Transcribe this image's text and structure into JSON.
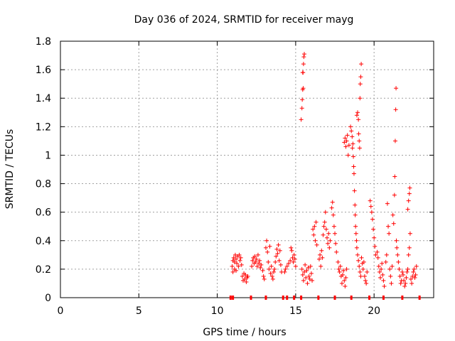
{
  "chart_data": {
    "type": "scatter",
    "title": "Day 036 of 2024, SRMTID for receiver mayg",
    "xlabel": "GPS time / hours",
    "ylabel": "SRMTID / TECUs",
    "xlim": [
      0,
      23.8
    ],
    "ylim": [
      0,
      1.8
    ],
    "xticks": [
      0,
      5,
      10,
      15,
      20
    ],
    "xtick_labels": [
      "0",
      "5",
      "10",
      "15",
      "20"
    ],
    "yticks": [
      0,
      0.2,
      0.4,
      0.6,
      0.8,
      1.0,
      1.2,
      1.4,
      1.6,
      1.8
    ],
    "ytick_labels": [
      "0",
      "0.2",
      "0.4",
      "0.6",
      "0.8",
      "1",
      "1.2",
      "1.4",
      "1.6",
      "1.8"
    ],
    "grid": true,
    "marker": "+",
    "color": "#ff0000",
    "series": [
      {
        "name": "SRMTID",
        "points": [
          [
            10.95,
            0.22
          ],
          [
            11.0,
            0.26
          ],
          [
            11.05,
            0.28
          ],
          [
            11.1,
            0.25
          ],
          [
            11.15,
            0.3
          ],
          [
            11.2,
            0.27
          ],
          [
            11.25,
            0.24
          ],
          [
            11.3,
            0.29
          ],
          [
            11.35,
            0.22
          ],
          [
            11.4,
            0.3
          ],
          [
            11.45,
            0.26
          ],
          [
            11.5,
            0.28
          ],
          [
            11.55,
            0.23
          ],
          [
            11.0,
            0.18
          ],
          [
            11.1,
            0.2
          ],
          [
            11.2,
            0.19
          ],
          [
            11.6,
            0.15
          ],
          [
            11.65,
            0.12
          ],
          [
            11.7,
            0.17
          ],
          [
            11.75,
            0.13
          ],
          [
            11.8,
            0.16
          ],
          [
            11.85,
            0.11
          ],
          [
            11.9,
            0.14
          ],
          [
            11.95,
            0.15
          ],
          [
            12.2,
            0.22
          ],
          [
            12.25,
            0.26
          ],
          [
            12.3,
            0.28
          ],
          [
            12.35,
            0.24
          ],
          [
            12.4,
            0.29
          ],
          [
            12.45,
            0.25
          ],
          [
            12.5,
            0.27
          ],
          [
            12.55,
            0.22
          ],
          [
            12.6,
            0.3
          ],
          [
            12.65,
            0.24
          ],
          [
            12.7,
            0.26
          ],
          [
            12.75,
            0.21
          ],
          [
            12.8,
            0.23
          ],
          [
            12.9,
            0.19
          ],
          [
            12.95,
            0.15
          ],
          [
            13.0,
            0.13
          ],
          [
            13.1,
            0.35
          ],
          [
            13.15,
            0.4
          ],
          [
            13.2,
            0.32
          ],
          [
            13.25,
            0.25
          ],
          [
            13.3,
            0.2
          ],
          [
            13.35,
            0.36
          ],
          [
            13.4,
            0.17
          ],
          [
            13.45,
            0.22
          ],
          [
            13.5,
            0.15
          ],
          [
            13.55,
            0.13
          ],
          [
            13.6,
            0.18
          ],
          [
            13.65,
            0.2
          ],
          [
            13.7,
            0.25
          ],
          [
            13.75,
            0.29
          ],
          [
            13.8,
            0.34
          ],
          [
            13.85,
            0.31
          ],
          [
            13.9,
            0.37
          ],
          [
            13.95,
            0.26
          ],
          [
            14.0,
            0.33
          ],
          [
            14.05,
            0.23
          ],
          [
            14.1,
            0.18
          ],
          [
            14.3,
            0.18
          ],
          [
            14.35,
            0.2
          ],
          [
            14.45,
            0.22
          ],
          [
            14.55,
            0.24
          ],
          [
            14.65,
            0.26
          ],
          [
            14.7,
            0.35
          ],
          [
            14.75,
            0.33
          ],
          [
            14.8,
            0.28
          ],
          [
            14.85,
            0.25
          ],
          [
            14.9,
            0.3
          ],
          [
            14.95,
            0.27
          ],
          [
            15.0,
            0.22
          ],
          [
            15.35,
            1.25
          ],
          [
            15.4,
            1.33
          ],
          [
            15.42,
            1.39
          ],
          [
            15.45,
            1.46
          ],
          [
            15.47,
            1.58
          ],
          [
            15.5,
            1.64
          ],
          [
            15.52,
            1.69
          ],
          [
            15.55,
            1.71
          ],
          [
            15.48,
            1.47
          ],
          [
            15.45,
            1.58
          ],
          [
            15.4,
            0.2
          ],
          [
            15.45,
            0.16
          ],
          [
            15.5,
            0.12
          ],
          [
            15.55,
            0.18
          ],
          [
            15.6,
            0.23
          ],
          [
            15.65,
            0.14
          ],
          [
            15.7,
            0.19
          ],
          [
            15.75,
            0.1
          ],
          [
            15.8,
            0.21
          ],
          [
            15.85,
            0.15
          ],
          [
            15.9,
            0.13
          ],
          [
            15.95,
            0.22
          ],
          [
            16.0,
            0.17
          ],
          [
            16.05,
            0.12
          ],
          [
            16.1,
            0.48
          ],
          [
            16.15,
            0.44
          ],
          [
            16.2,
            0.5
          ],
          [
            16.25,
            0.4
          ],
          [
            16.3,
            0.53
          ],
          [
            16.35,
            0.37
          ],
          [
            16.5,
            0.27
          ],
          [
            16.55,
            0.3
          ],
          [
            16.6,
            0.22
          ],
          [
            16.65,
            0.33
          ],
          [
            16.7,
            0.28
          ],
          [
            16.75,
            0.44
          ],
          [
            16.8,
            0.5
          ],
          [
            16.85,
            0.53
          ],
          [
            16.9,
            0.6
          ],
          [
            16.95,
            0.48
          ],
          [
            17.0,
            0.42
          ],
          [
            17.05,
            0.38
          ],
          [
            17.1,
            0.45
          ],
          [
            17.15,
            0.35
          ],
          [
            17.2,
            0.4
          ],
          [
            17.3,
            0.63
          ],
          [
            17.35,
            0.67
          ],
          [
            17.4,
            0.58
          ],
          [
            17.45,
            0.5
          ],
          [
            17.5,
            0.45
          ],
          [
            17.55,
            0.38
          ],
          [
            17.6,
            0.32
          ],
          [
            17.7,
            0.25
          ],
          [
            17.75,
            0.2
          ],
          [
            17.8,
            0.18
          ],
          [
            17.85,
            0.22
          ],
          [
            17.9,
            0.15
          ],
          [
            17.95,
            0.1
          ],
          [
            18.0,
            0.16
          ],
          [
            18.05,
            0.19
          ],
          [
            18.1,
            0.12
          ],
          [
            18.15,
            0.08
          ],
          [
            18.2,
            0.14
          ],
          [
            18.25,
            0.2
          ],
          [
            18.1,
            1.09
          ],
          [
            18.15,
            1.12
          ],
          [
            18.2,
            1.06
          ],
          [
            18.25,
            1.1
          ],
          [
            18.3,
            1.14
          ],
          [
            18.35,
            1.0
          ],
          [
            18.4,
            1.07
          ],
          [
            18.5,
            1.2
          ],
          [
            18.55,
            1.17
          ],
          [
            18.6,
            1.13
          ],
          [
            18.62,
            1.05
          ],
          [
            18.65,
            1.08
          ],
          [
            18.68,
            0.99
          ],
          [
            18.7,
            0.92
          ],
          [
            18.72,
            0.87
          ],
          [
            18.75,
            0.75
          ],
          [
            18.78,
            0.65
          ],
          [
            18.8,
            0.58
          ],
          [
            18.82,
            0.5
          ],
          [
            18.85,
            0.45
          ],
          [
            18.88,
            0.4
          ],
          [
            18.9,
            1.28
          ],
          [
            18.95,
            1.3
          ],
          [
            19.0,
            1.25
          ],
          [
            19.02,
            1.15
          ],
          [
            19.05,
            1.1
          ],
          [
            19.08,
            1.05
          ],
          [
            19.1,
            1.4
          ],
          [
            19.12,
            1.5
          ],
          [
            19.15,
            1.55
          ],
          [
            19.18,
            1.64
          ],
          [
            18.9,
            0.35
          ],
          [
            18.95,
            0.3
          ],
          [
            19.0,
            0.26
          ],
          [
            19.05,
            0.22
          ],
          [
            19.1,
            0.18
          ],
          [
            19.15,
            0.15
          ],
          [
            19.2,
            0.28
          ],
          [
            19.25,
            0.24
          ],
          [
            19.3,
            0.2
          ],
          [
            19.35,
            0.25
          ],
          [
            19.4,
            0.15
          ],
          [
            19.45,
            0.12
          ],
          [
            19.5,
            0.1
          ],
          [
            19.55,
            0.18
          ],
          [
            19.75,
            0.68
          ],
          [
            19.8,
            0.64
          ],
          [
            19.85,
            0.6
          ],
          [
            19.9,
            0.55
          ],
          [
            19.95,
            0.48
          ],
          [
            20.0,
            0.42
          ],
          [
            20.05,
            0.36
          ],
          [
            20.1,
            0.3
          ],
          [
            20.2,
            0.32
          ],
          [
            20.25,
            0.28
          ],
          [
            20.3,
            0.22
          ],
          [
            20.35,
            0.18
          ],
          [
            20.4,
            0.14
          ],
          [
            20.45,
            0.2
          ],
          [
            20.5,
            0.24
          ],
          [
            20.55,
            0.16
          ],
          [
            20.6,
            0.12
          ],
          [
            20.65,
            0.08
          ],
          [
            20.75,
            0.25
          ],
          [
            20.8,
            0.3
          ],
          [
            20.85,
            0.66
          ],
          [
            20.9,
            0.5
          ],
          [
            20.95,
            0.45
          ],
          [
            21.0,
            0.2
          ],
          [
            21.05,
            0.15
          ],
          [
            21.1,
            0.1
          ],
          [
            21.15,
            0.22
          ],
          [
            21.2,
            0.58
          ],
          [
            21.25,
            0.52
          ],
          [
            21.3,
            0.72
          ],
          [
            21.32,
            0.85
          ],
          [
            21.35,
            1.1
          ],
          [
            21.38,
            1.32
          ],
          [
            21.4,
            1.47
          ],
          [
            21.42,
            0.4
          ],
          [
            21.45,
            0.35
          ],
          [
            21.5,
            0.3
          ],
          [
            21.55,
            0.25
          ],
          [
            21.6,
            0.2
          ],
          [
            21.65,
            0.15
          ],
          [
            21.7,
            0.1
          ],
          [
            21.75,
            0.12
          ],
          [
            21.8,
            0.18
          ],
          [
            21.85,
            0.16
          ],
          [
            21.9,
            0.12
          ],
          [
            21.95,
            0.08
          ],
          [
            22.0,
            0.1
          ],
          [
            22.05,
            0.14
          ],
          [
            22.1,
            0.18
          ],
          [
            22.15,
            0.2
          ],
          [
            22.2,
            0.3
          ],
          [
            22.25,
            0.35
          ],
          [
            22.15,
            0.62
          ],
          [
            22.2,
            0.68
          ],
          [
            22.25,
            0.73
          ],
          [
            22.28,
            0.77
          ],
          [
            22.3,
            0.45
          ],
          [
            22.35,
            0.13
          ],
          [
            22.4,
            0.1
          ],
          [
            22.45,
            0.15
          ],
          [
            22.5,
            0.18
          ],
          [
            22.55,
            0.2
          ],
          [
            22.6,
            0.14
          ],
          [
            22.65,
            0.16
          ],
          [
            22.7,
            0.22
          ]
        ]
      }
    ],
    "baseline_marker_x": [
      10.85,
      11.0,
      12.15,
      13.1,
      14.2,
      14.45,
      14.9,
      15.35,
      16.45,
      17.5,
      18.55,
      19.7,
      20.6,
      21.8,
      22.9
    ]
  }
}
